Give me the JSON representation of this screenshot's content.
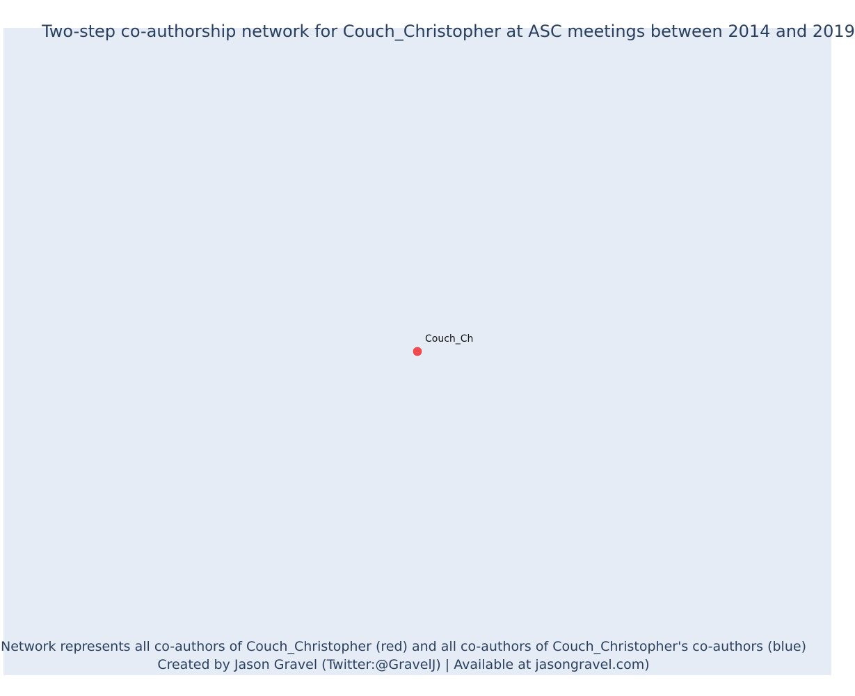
{
  "title": "Two-step co-authorship network for Couch_Christopher at ASC meetings between 2014 and 2019",
  "colors": {
    "plot_background": "#e5ecf6",
    "text": "#2a3f5f",
    "focal_node": "#ef4a4f",
    "coauthor_node": "#636efa"
  },
  "chart_data": {
    "type": "scatter",
    "network": true,
    "nodes": [
      {
        "label": "Couch_Ch",
        "role": "focal",
        "x": 0,
        "y": 0
      }
    ],
    "edges": [],
    "grid": false,
    "legend": "none"
  },
  "captions": {
    "line1": "Network represents all co-authors of Couch_Christopher (red) and all co-authors of Couch_Christopher's co-authors (blue)",
    "line2": "Created by Jason Gravel (Twitter:@GravelJ) | Available at jasongravel.com)"
  }
}
